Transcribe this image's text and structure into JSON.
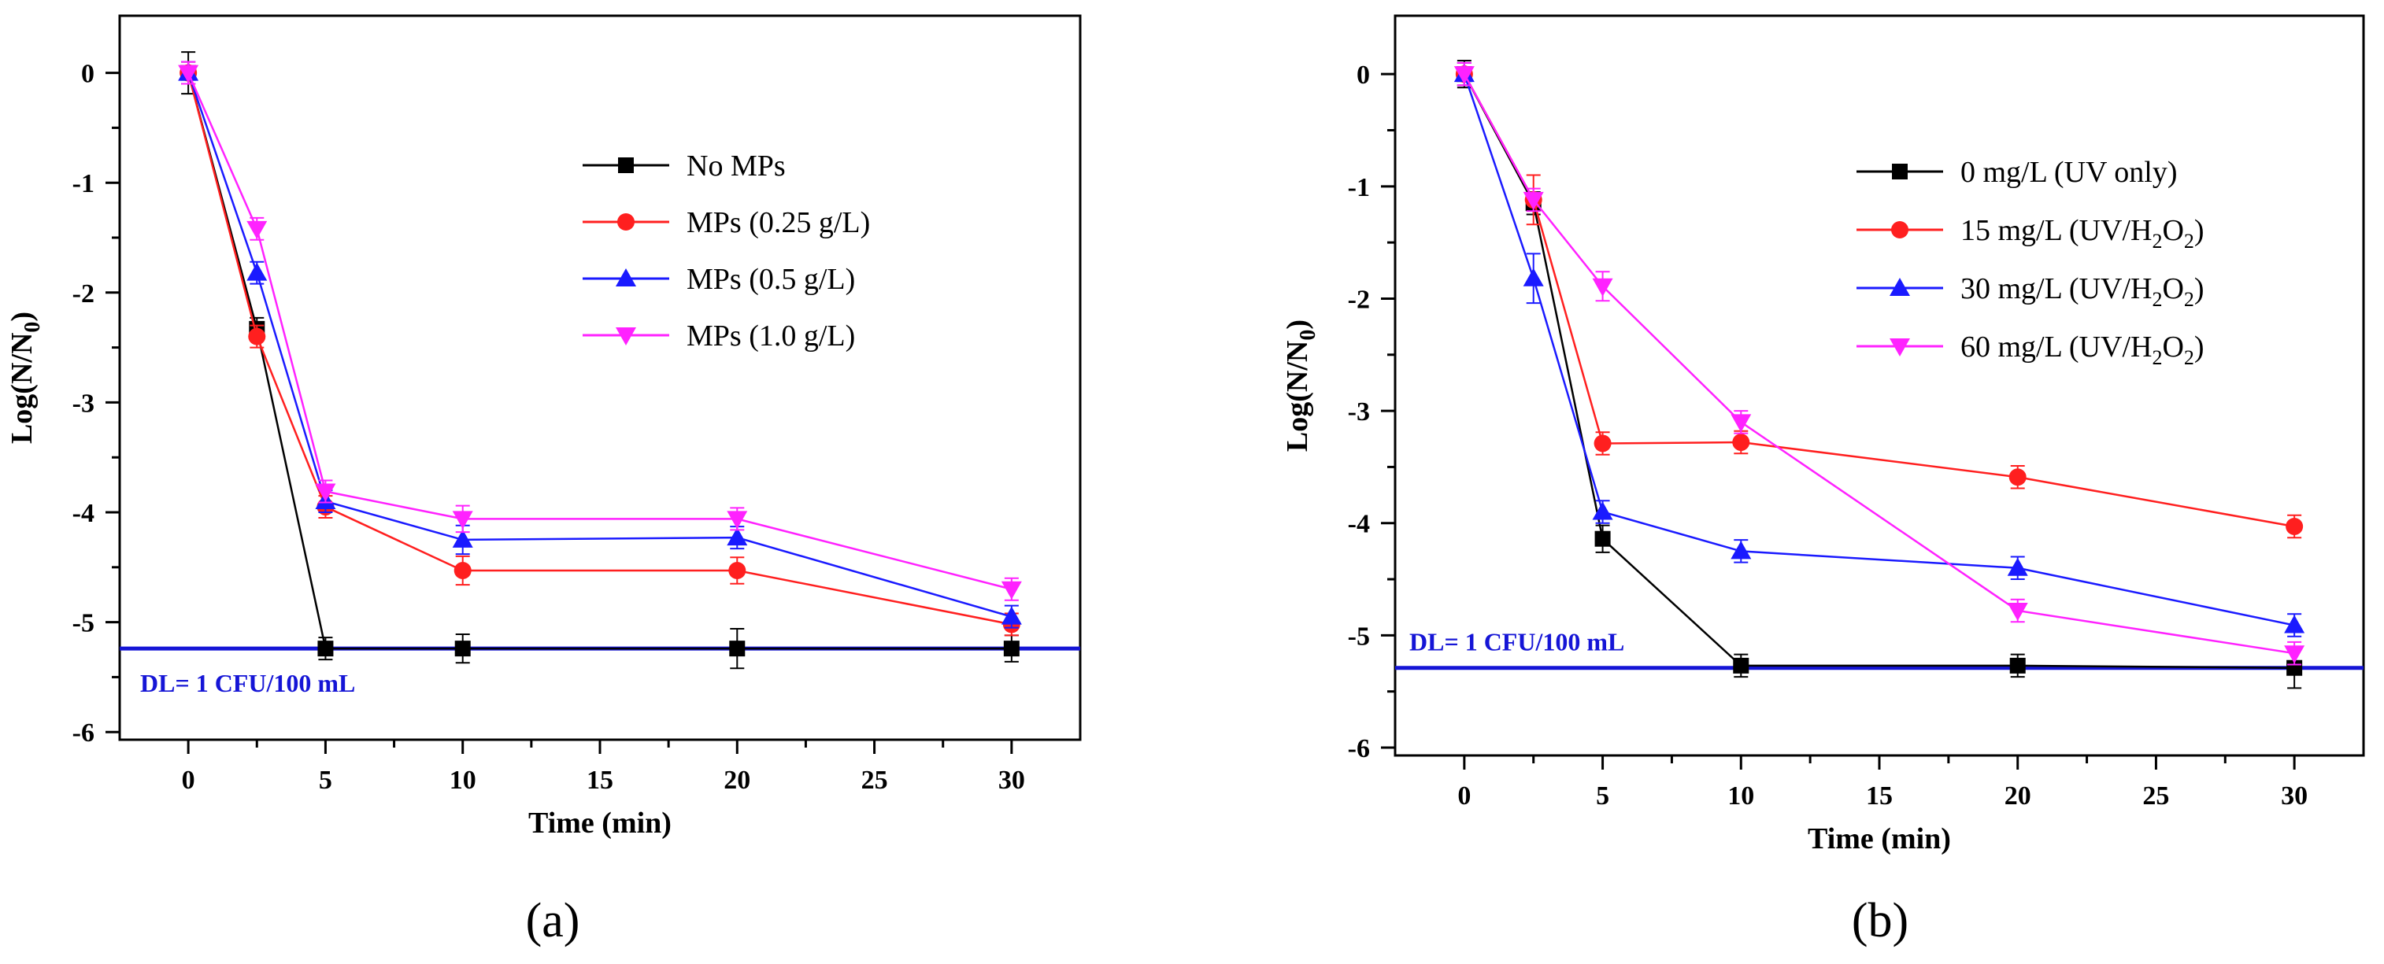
{
  "chart_data": [
    {
      "type": "line",
      "panel_label": "(a)",
      "xlabel": "Time (min)",
      "ylabel": {
        "main": "Log(N/N",
        "sub": "0",
        "close": ")"
      },
      "xlim": [
        -2.5,
        32.5
      ],
      "ylim": [
        -6.07,
        0.52
      ],
      "xticks": [
        0,
        5,
        10,
        15,
        20,
        25,
        30
      ],
      "yticks": [
        0,
        -1,
        -2,
        -3,
        -4,
        -5,
        -6
      ],
      "legend_position": "upper-right",
      "detection_limit": {
        "y": -5.24,
        "label": "DL= 1 CFU/100 mL",
        "color": "#1515d6"
      },
      "series": [
        {
          "name": "No MPs",
          "color": "#000000",
          "marker": "square",
          "x": [
            0,
            2.5,
            5,
            10,
            20,
            30
          ],
          "y": [
            0,
            -2.33,
            -5.24,
            -5.24,
            -5.24,
            -5.24
          ],
          "err": [
            0.19,
            0.1,
            0.1,
            0.13,
            0.18,
            0.12
          ]
        },
        {
          "name": "MPs (0.25 g/L)",
          "color": "#ff1f1f",
          "marker": "circle",
          "x": [
            0,
            2.5,
            5,
            10,
            20,
            30
          ],
          "y": [
            0,
            -2.4,
            -3.95,
            -4.53,
            -4.53,
            -5.02
          ],
          "err": [
            0.1,
            0.1,
            0.1,
            0.13,
            0.12,
            0.1
          ]
        },
        {
          "name": "MPs (0.5 g/L)",
          "color": "#1a1aff",
          "marker": "triangle-up",
          "x": [
            0,
            2.5,
            5,
            10,
            20,
            30
          ],
          "y": [
            0,
            -1.82,
            -3.9,
            -4.25,
            -4.23,
            -4.95
          ],
          "err": [
            0.1,
            0.1,
            0.1,
            0.13,
            0.1,
            0.1
          ]
        },
        {
          "name": "MPs (1.0 g/L)",
          "color": "#ff22ff",
          "marker": "triangle-down",
          "x": [
            0,
            2.5,
            5,
            10,
            20,
            30
          ],
          "y": [
            0,
            -1.42,
            -3.81,
            -4.06,
            -4.06,
            -4.7
          ],
          "err": [
            0.1,
            0.1,
            0.1,
            0.12,
            0.1,
            0.1
          ]
        }
      ]
    },
    {
      "type": "line",
      "panel_label": "(b)",
      "xlabel": "Time (min)",
      "ylabel": {
        "main": "Log(N/N",
        "sub": "0",
        "close": ")"
      },
      "xlim": [
        -2.5,
        32.5
      ],
      "ylim": [
        -6.07,
        0.52
      ],
      "xticks": [
        0,
        5,
        10,
        15,
        20,
        25,
        30
      ],
      "yticks": [
        0,
        -1,
        -2,
        -3,
        -4,
        -5,
        -6
      ],
      "legend_position": "upper-right",
      "detection_limit": {
        "y": -5.29,
        "label": "DL= 1 CFU/100 mL",
        "color": "#1515d6"
      },
      "series": [
        {
          "name": "0 mg/L (UV only)",
          "color": "#000000",
          "marker": "square",
          "x": [
            0,
            2.5,
            5,
            10,
            20,
            30
          ],
          "y": [
            0,
            -1.15,
            -4.14,
            -5.27,
            -5.27,
            -5.29
          ],
          "err": [
            0.12,
            0.1,
            0.12,
            0.1,
            0.1,
            0.18
          ]
        },
        {
          "name": "15 mg/L (UV/H2O2)",
          "color": "#ff1f1f",
          "marker": "circle",
          "x": [
            0,
            2.5,
            5,
            10,
            20,
            30
          ],
          "y": [
            0,
            -1.12,
            -3.29,
            -3.28,
            -3.59,
            -4.03
          ],
          "err": [
            0.1,
            0.22,
            0.1,
            0.1,
            0.1,
            0.1
          ]
        },
        {
          "name": "30 mg/L (UV/H2O2)",
          "color": "#1a1aff",
          "marker": "triangle-up",
          "x": [
            0,
            2.5,
            5,
            10,
            20,
            30
          ],
          "y": [
            0,
            -1.82,
            -3.9,
            -4.25,
            -4.4,
            -4.91
          ],
          "err": [
            0.1,
            0.22,
            0.1,
            0.1,
            0.1,
            0.1
          ]
        },
        {
          "name": "60 mg/L (UV/H2O2)",
          "color": "#ff22ff",
          "marker": "triangle-down",
          "x": [
            0,
            2.5,
            5,
            10,
            20,
            30
          ],
          "y": [
            0,
            -1.12,
            -1.89,
            -3.1,
            -4.78,
            -5.16
          ],
          "err": [
            0.1,
            0.1,
            0.13,
            0.1,
            0.1,
            0.1
          ]
        }
      ]
    }
  ]
}
